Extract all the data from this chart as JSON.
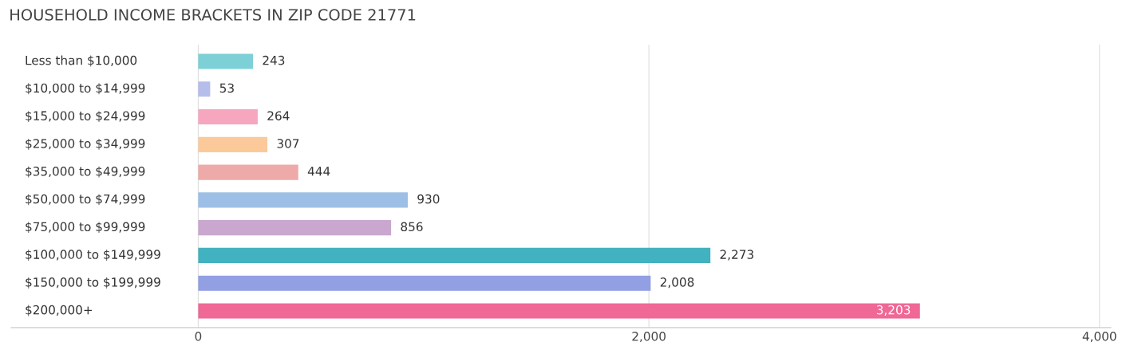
{
  "chart_data": {
    "type": "bar",
    "orientation": "horizontal",
    "title": "HOUSEHOLD INCOME BRACKETS IN ZIP CODE 21771",
    "categories": [
      "Less than $10,000",
      "$10,000 to $14,999",
      "$15,000 to $24,999",
      "$25,000 to $34,999",
      "$35,000 to $49,999",
      "$50,000 to $74,999",
      "$75,000 to $99,999",
      "$100,000 to $149,999",
      "$150,000 to $199,999",
      "$200,000+"
    ],
    "values": [
      243,
      53,
      264,
      307,
      444,
      930,
      856,
      2273,
      2008,
      3203
    ],
    "value_labels": [
      "243",
      "53",
      "264",
      "307",
      "444",
      "930",
      "856",
      "2,273",
      "2,008",
      "3,203"
    ],
    "colors": [
      "#7dd0d6",
      "#b5bdeb",
      "#f7a6c0",
      "#fbc99a",
      "#eeaaa8",
      "#9dbfe6",
      "#c9a7cf",
      "#42b1c0",
      "#929fe3",
      "#f06895"
    ],
    "xlim": [
      -830,
      4050
    ],
    "xticks": [
      {
        "value": 0,
        "label": "0"
      },
      {
        "value": 2000,
        "label": "2,000"
      },
      {
        "value": 4000,
        "label": "4,000"
      }
    ],
    "grid": "x",
    "legend": false
  }
}
